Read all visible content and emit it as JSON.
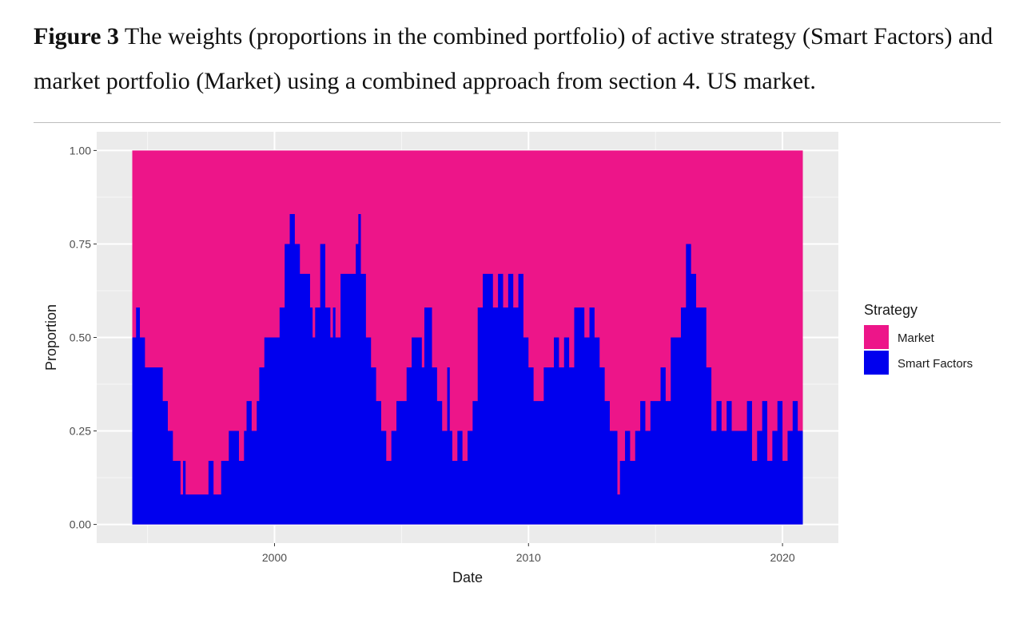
{
  "caption": {
    "label": "Figure 3",
    "text": " The weights (proportions in the combined portfolio) of active strategy (Smart Factors) and market portfolio (Market) using a combined approach from section 4. US market."
  },
  "chart_data": {
    "type": "area",
    "stacked": true,
    "xlabel": "Date",
    "ylabel": "Proportion",
    "xlim": [
      1993.0,
      2022.2
    ],
    "ylim": [
      -0.05,
      1.05
    ],
    "x_ticks": [
      2000,
      2010,
      2020
    ],
    "y_ticks": [
      0.0,
      0.25,
      0.5,
      0.75,
      1.0
    ],
    "y_tick_labels": [
      "0.00",
      "0.25",
      "0.50",
      "0.75",
      "1.00"
    ],
    "grid": true,
    "legend": {
      "title": "Strategy",
      "placement": "right"
    },
    "series": [
      {
        "name": "Market",
        "color": "#ED1589"
      },
      {
        "name": "Smart Factors",
        "color": "#0000EE"
      }
    ],
    "smart_factors": {
      "x": [
        1994.4,
        1994.55,
        1994.7,
        1994.9,
        1995.4,
        1995.6,
        1995.8,
        1996.0,
        1996.2,
        1996.3,
        1996.4,
        1996.5,
        1996.7,
        1996.9,
        1997.0,
        1997.2,
        1997.4,
        1997.6,
        1997.8,
        1997.9,
        1998.0,
        1998.2,
        1998.4,
        1998.6,
        1998.8,
        1998.9,
        1999.1,
        1999.3,
        1999.4,
        1999.6,
        1999.8,
        2000.0,
        2000.2,
        2000.4,
        2000.6,
        2000.8,
        2001.0,
        2001.2,
        2001.4,
        2001.5,
        2001.6,
        2001.8,
        2002.0,
        2002.2,
        2002.3,
        2002.4,
        2002.6,
        2002.8,
        2003.0,
        2003.2,
        2003.3,
        2003.4,
        2003.6,
        2003.8,
        2004.0,
        2004.2,
        2004.4,
        2004.6,
        2004.8,
        2005.0,
        2005.2,
        2005.4,
        2005.6,
        2005.8,
        2005.9,
        2006.0,
        2006.2,
        2006.4,
        2006.6,
        2006.8,
        2006.9,
        2007.0,
        2007.2,
        2007.4,
        2007.6,
        2007.8,
        2008.0,
        2008.2,
        2008.4,
        2008.6,
        2008.8,
        2009.0,
        2009.2,
        2009.4,
        2009.6,
        2009.8,
        2010.0,
        2010.2,
        2010.4,
        2010.6,
        2010.8,
        2011.0,
        2011.2,
        2011.4,
        2011.6,
        2011.8,
        2012.0,
        2012.2,
        2012.4,
        2012.6,
        2012.8,
        2013.0,
        2013.2,
        2013.4,
        2013.5,
        2013.6,
        2013.8,
        2014.0,
        2014.2,
        2014.4,
        2014.6,
        2014.8,
        2015.0,
        2015.2,
        2015.4,
        2015.6,
        2015.8,
        2016.0,
        2016.2,
        2016.4,
        2016.6,
        2016.8,
        2017.0,
        2017.2,
        2017.4,
        2017.6,
        2017.8,
        2018.0,
        2018.2,
        2018.4,
        2018.6,
        2018.8,
        2019.0,
        2019.2,
        2019.4,
        2019.6,
        2019.8,
        2020.0,
        2020.2,
        2020.4,
        2020.6,
        2020.8
      ],
      "y": [
        0.5,
        0.58,
        0.5,
        0.42,
        0.42,
        0.33,
        0.25,
        0.17,
        0.17,
        0.08,
        0.17,
        0.08,
        0.08,
        0.08,
        0.08,
        0.08,
        0.17,
        0.08,
        0.08,
        0.17,
        0.17,
        0.25,
        0.25,
        0.17,
        0.25,
        0.33,
        0.25,
        0.33,
        0.42,
        0.5,
        0.5,
        0.5,
        0.58,
        0.75,
        0.83,
        0.75,
        0.67,
        0.67,
        0.58,
        0.5,
        0.58,
        0.75,
        0.58,
        0.5,
        0.58,
        0.5,
        0.67,
        0.67,
        0.67,
        0.75,
        0.83,
        0.67,
        0.5,
        0.42,
        0.33,
        0.25,
        0.17,
        0.25,
        0.33,
        0.33,
        0.42,
        0.5,
        0.5,
        0.42,
        0.58,
        0.58,
        0.42,
        0.33,
        0.25,
        0.42,
        0.25,
        0.17,
        0.25,
        0.17,
        0.25,
        0.33,
        0.58,
        0.67,
        0.67,
        0.58,
        0.67,
        0.58,
        0.67,
        0.58,
        0.67,
        0.5,
        0.42,
        0.33,
        0.33,
        0.42,
        0.42,
        0.5,
        0.42,
        0.5,
        0.42,
        0.58,
        0.58,
        0.5,
        0.58,
        0.5,
        0.42,
        0.33,
        0.25,
        0.25,
        0.08,
        0.17,
        0.25,
        0.17,
        0.25,
        0.33,
        0.25,
        0.33,
        0.33,
        0.42,
        0.33,
        0.5,
        0.5,
        0.58,
        0.75,
        0.67,
        0.58,
        0.58,
        0.42,
        0.25,
        0.33,
        0.25,
        0.33,
        0.25,
        0.25,
        0.25,
        0.33,
        0.17,
        0.25,
        0.33,
        0.17,
        0.25,
        0.33,
        0.17,
        0.25,
        0.33,
        0.25,
        0.29
      ]
    }
  }
}
